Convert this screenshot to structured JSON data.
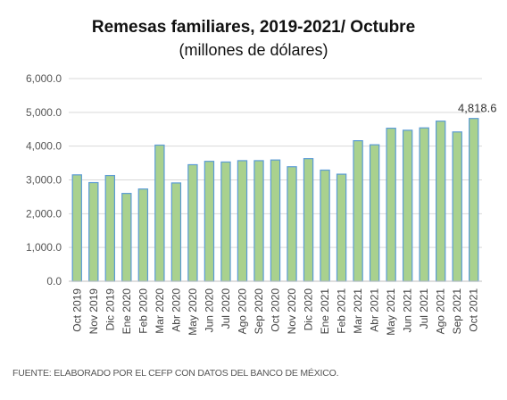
{
  "chart_data": {
    "type": "bar",
    "title": "Remesas familiares, 2019-2021/ Octubre",
    "subtitle": "(millones de dólares)",
    "xlabel": "",
    "ylabel": "",
    "ylim": [
      0,
      6000
    ],
    "yticks": [
      "6,000.0",
      "5,000.0",
      "4,000.0",
      "3,000.0",
      "2,000.0",
      "1,000.0",
      "0.0"
    ],
    "grid": true,
    "legend": "none",
    "categories": [
      "Oct 2019",
      "Nov 2019",
      "Dic 2019",
      "Ene 2020",
      "Feb 2020",
      "Mar 2020",
      "Abr 2020",
      "May 2020",
      "Jun 2020",
      "Jul 2020",
      "Ago 2020",
      "Sep 2020",
      "Oct 2020",
      "Nov 2020",
      "Dic 2020",
      "Ene 2021",
      "Feb 2021",
      "Mar 2021",
      "Abr 2021",
      "May 2021",
      "Jun 2021",
      "Jul 2021",
      "Ago 2021",
      "Sep 2021",
      "Oct 2021"
    ],
    "values": [
      3150,
      2920,
      3130,
      2600,
      2730,
      4030,
      2910,
      3450,
      3550,
      3530,
      3570,
      3570,
      3590,
      3390,
      3630,
      3290,
      3170,
      4160,
      4040,
      4530,
      4470,
      4540,
      4740,
      4420,
      4818.6
    ],
    "data_labels": [
      {
        "index": 24,
        "text": "4,818.6"
      }
    ],
    "bar_color": "#a9d18e",
    "bar_edge_color": "#5b9bd5",
    "grid_color": "#d9d9d9"
  },
  "source_note": "FUENTE: ELABORADO POR EL CEFP CON DATOS DEL BANCO DE MÉXICO."
}
